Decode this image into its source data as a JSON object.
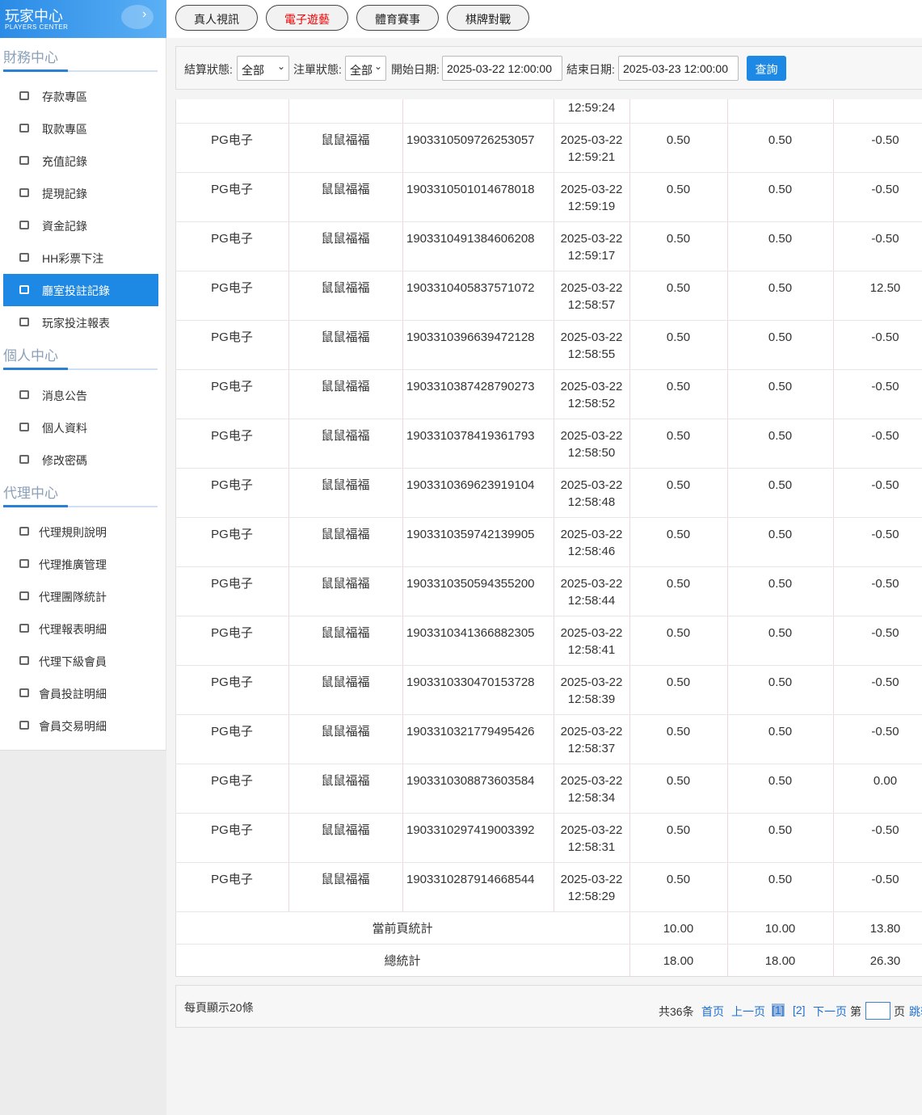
{
  "sidebar": {
    "logo_title": "玩家中心",
    "logo_subtitle": "PLAYERS CENTER",
    "sections": [
      {
        "title": "財務中心",
        "items": [
          {
            "label": "存款專區"
          },
          {
            "label": "取款專區"
          },
          {
            "label": "充值記錄"
          },
          {
            "label": "提現記錄"
          },
          {
            "label": "資金記錄"
          },
          {
            "label": "HH彩票下注"
          },
          {
            "label": "廳室投註記錄",
            "active": true
          },
          {
            "label": "玩家投注報表"
          }
        ]
      },
      {
        "title": "個人中心",
        "items": [
          {
            "label": "消息公告"
          },
          {
            "label": "個人資料"
          },
          {
            "label": "修改密碼"
          }
        ]
      },
      {
        "title": "代理中心",
        "items": [
          {
            "label": "代理規則說明"
          },
          {
            "label": "代理推廣管理"
          },
          {
            "label": "代理團隊統計"
          },
          {
            "label": "代理報表明細"
          },
          {
            "label": "代理下級會員"
          },
          {
            "label": "會員投註明細"
          },
          {
            "label": "會員交易明細"
          }
        ]
      }
    ]
  },
  "tabs": [
    {
      "label": "真人視訊"
    },
    {
      "label": "電子遊藝",
      "active": true
    },
    {
      "label": "體育賽事"
    },
    {
      "label": "棋牌對戰"
    }
  ],
  "filters": {
    "settle_label": "結算狀態:",
    "settle_value": "全部",
    "order_label": "注單狀態:",
    "order_value": "全部",
    "start_label": "開始日期:",
    "start_value": "2025-03-22 12:00:00",
    "end_label": "結束日期:",
    "end_value": "2025-03-23 12:00:00",
    "button": "查詢"
  },
  "table": {
    "partial_row_time": "12:59:24",
    "rows": [
      [
        "PG电子",
        "鼠鼠福福",
        "1903310509726253057",
        "2025-03-22",
        "12:59:21",
        "0.50",
        "0.50",
        "-0.50"
      ],
      [
        "PG电子",
        "鼠鼠福福",
        "1903310501014678018",
        "2025-03-22",
        "12:59:19",
        "0.50",
        "0.50",
        "-0.50"
      ],
      [
        "PG电子",
        "鼠鼠福福",
        "1903310491384606208",
        "2025-03-22",
        "12:59:17",
        "0.50",
        "0.50",
        "-0.50"
      ],
      [
        "PG电子",
        "鼠鼠福福",
        "1903310405837571072",
        "2025-03-22",
        "12:58:57",
        "0.50",
        "0.50",
        "12.50"
      ],
      [
        "PG电子",
        "鼠鼠福福",
        "1903310396639472128",
        "2025-03-22",
        "12:58:55",
        "0.50",
        "0.50",
        "-0.50"
      ],
      [
        "PG电子",
        "鼠鼠福福",
        "1903310387428790273",
        "2025-03-22",
        "12:58:52",
        "0.50",
        "0.50",
        "-0.50"
      ],
      [
        "PG电子",
        "鼠鼠福福",
        "1903310378419361793",
        "2025-03-22",
        "12:58:50",
        "0.50",
        "0.50",
        "-0.50"
      ],
      [
        "PG电子",
        "鼠鼠福福",
        "1903310369623919104",
        "2025-03-22",
        "12:58:48",
        "0.50",
        "0.50",
        "-0.50"
      ],
      [
        "PG电子",
        "鼠鼠福福",
        "1903310359742139905",
        "2025-03-22",
        "12:58:46",
        "0.50",
        "0.50",
        "-0.50"
      ],
      [
        "PG电子",
        "鼠鼠福福",
        "1903310350594355200",
        "2025-03-22",
        "12:58:44",
        "0.50",
        "0.50",
        "-0.50"
      ],
      [
        "PG电子",
        "鼠鼠福福",
        "1903310341366882305",
        "2025-03-22",
        "12:58:41",
        "0.50",
        "0.50",
        "-0.50"
      ],
      [
        "PG电子",
        "鼠鼠福福",
        "1903310330470153728",
        "2025-03-22",
        "12:58:39",
        "0.50",
        "0.50",
        "-0.50"
      ],
      [
        "PG电子",
        "鼠鼠福福",
        "1903310321779495426",
        "2025-03-22",
        "12:58:37",
        "0.50",
        "0.50",
        "-0.50"
      ],
      [
        "PG电子",
        "鼠鼠福福",
        "1903310308873603584",
        "2025-03-22",
        "12:58:34",
        "0.50",
        "0.50",
        "0.00"
      ],
      [
        "PG电子",
        "鼠鼠福福",
        "1903310297419003392",
        "2025-03-22",
        "12:58:31",
        "0.50",
        "0.50",
        "-0.50"
      ],
      [
        "PG电子",
        "鼠鼠福福",
        "1903310287914668544",
        "2025-03-22",
        "12:58:29",
        "0.50",
        "0.50",
        "-0.50"
      ]
    ],
    "page_total": {
      "label": "當前頁統計",
      "values": [
        "10.00",
        "10.00",
        "13.80"
      ]
    },
    "grand_total": {
      "label": "總統計",
      "values": [
        "18.00",
        "18.00",
        "26.30"
      ]
    }
  },
  "pager": {
    "page_size": "每頁顯示20條",
    "total": "共36条",
    "first": "首页",
    "prev": "上一页",
    "pages": [
      "[1]",
      "[2]"
    ],
    "next": "下一页",
    "goto_prefix": "第",
    "goto_suffix": "页",
    "jump": "跳转"
  }
}
